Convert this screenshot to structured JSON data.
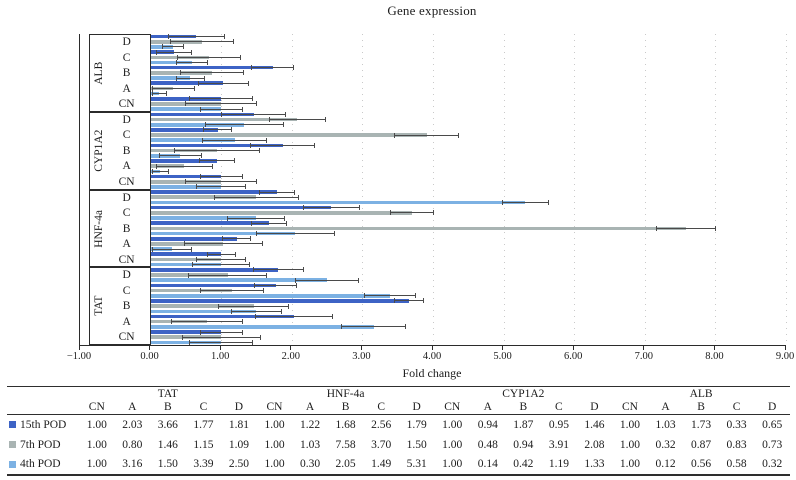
{
  "figure": {
    "title": "Gene expression",
    "xlabel": "Fold change"
  },
  "chart_data": {
    "type": "bar",
    "orientation": "horizontal",
    "title": "Gene expression",
    "xlabel": "Fold change",
    "xlim": [
      -1,
      9
    ],
    "xtick_labels": [
      "−1.00",
      "0.00",
      "1.00",
      "2.00",
      "3.00",
      "4.00",
      "5.00",
      "6.00",
      "7.00",
      "8.00",
      "9.00"
    ],
    "grid_values": [
      1,
      2,
      3,
      4,
      5,
      6,
      7,
      8,
      9
    ],
    "grid_style": "dotted",
    "legend_position": "table-below",
    "genes_top_to_bottom": [
      "ALB",
      "CYP1A2",
      "HNF-4a",
      "TAT"
    ],
    "conditions_top_to_bottom": [
      "D",
      "C",
      "B",
      "A",
      "CN"
    ],
    "series": [
      {
        "name": "15th POD",
        "color": "#3d63c5",
        "values": {
          "TAT": {
            "CN": 1.0,
            "A": 2.03,
            "B": 3.66,
            "C": 1.77,
            "D": 1.81
          },
          "HNF-4a": {
            "CN": 1.0,
            "A": 1.22,
            "B": 1.68,
            "C": 2.56,
            "D": 1.79
          },
          "CYP1A2": {
            "CN": 1.0,
            "A": 0.94,
            "B": 1.87,
            "C": 0.95,
            "D": 1.46
          },
          "ALB": {
            "CN": 1.0,
            "A": 1.03,
            "B": 1.73,
            "C": 0.33,
            "D": 0.65
          }
        },
        "errors": {
          "TAT": {
            "CN": 0.3,
            "A": 0.55,
            "B": 0.2,
            "C": 0.3,
            "D": 0.35
          },
          "HNF-4a": {
            "CN": 0.2,
            "A": 0.2,
            "B": 0.25,
            "C": 0.4,
            "D": 0.25
          },
          "CYP1A2": {
            "CN": 0.3,
            "A": 0.25,
            "B": 0.45,
            "C": 0.2,
            "D": 0.45
          },
          "ALB": {
            "CN": 0.45,
            "A": 0.35,
            "B": 0.3,
            "C": 0.25,
            "D": 0.4
          }
        }
      },
      {
        "name": "7th POD",
        "color": "#a9b4b3",
        "values": {
          "TAT": {
            "CN": 1.0,
            "A": 0.8,
            "B": 1.46,
            "C": 1.15,
            "D": 1.09
          },
          "HNF-4a": {
            "CN": 1.0,
            "A": 1.03,
            "B": 7.58,
            "C": 3.7,
            "D": 1.5
          },
          "CYP1A2": {
            "CN": 1.0,
            "A": 0.48,
            "B": 0.94,
            "C": 3.91,
            "D": 2.08
          },
          "ALB": {
            "CN": 1.0,
            "A": 0.32,
            "B": 0.87,
            "C": 0.83,
            "D": 0.73
          }
        },
        "errors": {
          "TAT": {
            "CN": 0.55,
            "A": 0.5,
            "B": 0.5,
            "C": 0.45,
            "D": 0.55
          },
          "HNF-4a": {
            "CN": 0.35,
            "A": 0.55,
            "B": 0.42,
            "C": 0.3,
            "D": 0.6
          },
          "CYP1A2": {
            "CN": 0.5,
            "A": 0.4,
            "B": 0.6,
            "C": 0.45,
            "D": 0.4
          },
          "ALB": {
            "CN": 0.5,
            "A": 0.3,
            "B": 0.45,
            "C": 0.45,
            "D": 0.45
          }
        }
      },
      {
        "name": "4th POD",
        "color": "#7cb1e3",
        "values": {
          "TAT": {
            "CN": 1.0,
            "A": 3.16,
            "B": 1.5,
            "C": 3.39,
            "D": 2.5
          },
          "HNF-4a": {
            "CN": 1.0,
            "A": 0.3,
            "B": 2.05,
            "C": 1.49,
            "D": 5.31
          },
          "CYP1A2": {
            "CN": 1.0,
            "A": 0.14,
            "B": 0.42,
            "C": 1.19,
            "D": 1.33
          },
          "ALB": {
            "CN": 1.0,
            "A": 0.12,
            "B": 0.56,
            "C": 0.58,
            "D": 0.32
          }
        },
        "errors": {
          "TAT": {
            "CN": 0.45,
            "A": 0.45,
            "B": 0.35,
            "C": 0.36,
            "D": 0.45
          },
          "HNF-4a": {
            "CN": 0.4,
            "A": 0.28,
            "B": 0.55,
            "C": 0.4,
            "D": 0.32
          },
          "CYP1A2": {
            "CN": 0.35,
            "A": 0.12,
            "B": 0.3,
            "C": 0.45,
            "D": 0.55
          },
          "ALB": {
            "CN": 0.3,
            "A": 0.1,
            "B": 0.2,
            "C": 0.22,
            "D": 0.15
          }
        }
      }
    ]
  },
  "table": {
    "gene_order": [
      "TAT",
      "HNF-4a",
      "CYP1A2",
      "ALB"
    ],
    "condition_order": [
      "CN",
      "A",
      "B",
      "C",
      "D"
    ]
  },
  "colors": {
    "frame": "#2b2b2b",
    "grid": "#c9c9c9",
    "error_bar": "#4a4a4a",
    "text": "#1c1c1c"
  }
}
